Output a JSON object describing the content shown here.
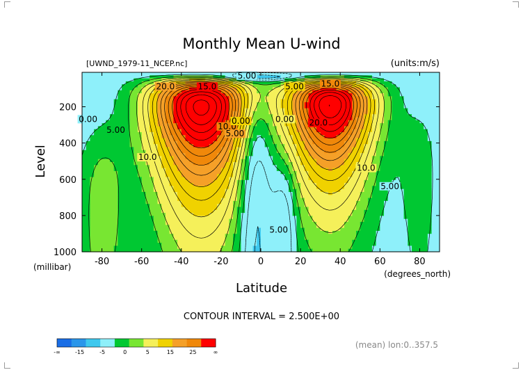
{
  "chart_data": {
    "type": "contour",
    "title": "Monthly Mean U-wind",
    "file_label": "[UWND_1979-11_NCEP.nc]",
    "units_label": "(units:m/s)",
    "xlabel": "Latitude",
    "x_units": "(degrees_north)",
    "ylabel": "Level",
    "y_units": "(millibar)",
    "xlim": [
      -90,
      90
    ],
    "ylim": [
      1000,
      10
    ],
    "x_ticks": [
      -80,
      -60,
      -40,
      -20,
      0,
      20,
      40,
      60,
      80
    ],
    "y_ticks": [
      200,
      400,
      600,
      800,
      1000
    ],
    "contour_interval_text": "CONTOUR INTERVAL = 2.500E+00",
    "footer_text": "(mean) lon:0..357.5",
    "colorbar": {
      "ticks": [
        "-∞",
        "-15",
        "-5",
        "0",
        "5",
        "15",
        "25",
        "∞"
      ],
      "colors": [
        "#1a6ee6",
        "#2a96ea",
        "#3ec8ee",
        "#8ef0fa",
        "#00c832",
        "#78e632",
        "#f5f05a",
        "#f0d200",
        "#f5a028",
        "#f0880a",
        "#ff0000"
      ]
    },
    "contour_labels": [
      {
        "text": "5.00",
        "lat": -7,
        "lev": 40
      },
      {
        "text": "20.0",
        "lat": -48,
        "lev": 100
      },
      {
        "text": "15.0",
        "lat": -27,
        "lev": 100
      },
      {
        "text": "5.00",
        "lat": 17,
        "lev": 100
      },
      {
        "text": "15.0",
        "lat": 35,
        "lev": 85
      },
      {
        "text": "0.00",
        "lat": -87,
        "lev": 280
      },
      {
        "text": "5.00",
        "lat": -73,
        "lev": 340
      },
      {
        "text": "10.0",
        "lat": -57,
        "lev": 490
      },
      {
        "text": "10.0",
        "lat": -17,
        "lev": 320
      },
      {
        "text": "5.00",
        "lat": -13,
        "lev": 360
      },
      {
        "text": "0.00",
        "lat": -10,
        "lev": 290
      },
      {
        "text": "0.00",
        "lat": 12,
        "lev": 280
      },
      {
        "text": "20.0",
        "lat": 29,
        "lev": 300
      },
      {
        "text": "10.0",
        "lat": 53,
        "lev": 550
      },
      {
        "text": "5.00",
        "lat": 65,
        "lev": 650
      },
      {
        "text": "5.00",
        "lat": 9,
        "lev": 890
      }
    ]
  }
}
